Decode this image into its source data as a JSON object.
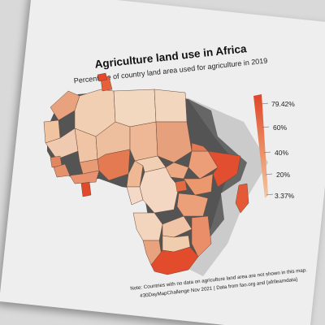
{
  "title": "Agriculture land use in Africa",
  "subtitle": "Percentage of country land area used for agriculture in 2019",
  "legend": {
    "labels": [
      "79.42%",
      "60%",
      "40%",
      "20%",
      "3.37%"
    ],
    "min_color": "#f2c7a2",
    "max_color": "#e0442a"
  },
  "note": {
    "line1": "Note: Countries with no data on agriculture land area are not shown in this map.",
    "line2": "#30DayMapChallenge Nov 2021 | Data from fao.org and {afrilearndata}"
  },
  "colors": {
    "background": "#d9d9d9",
    "card": "#eeeeee",
    "shadow": "#3a3a3a"
  }
}
